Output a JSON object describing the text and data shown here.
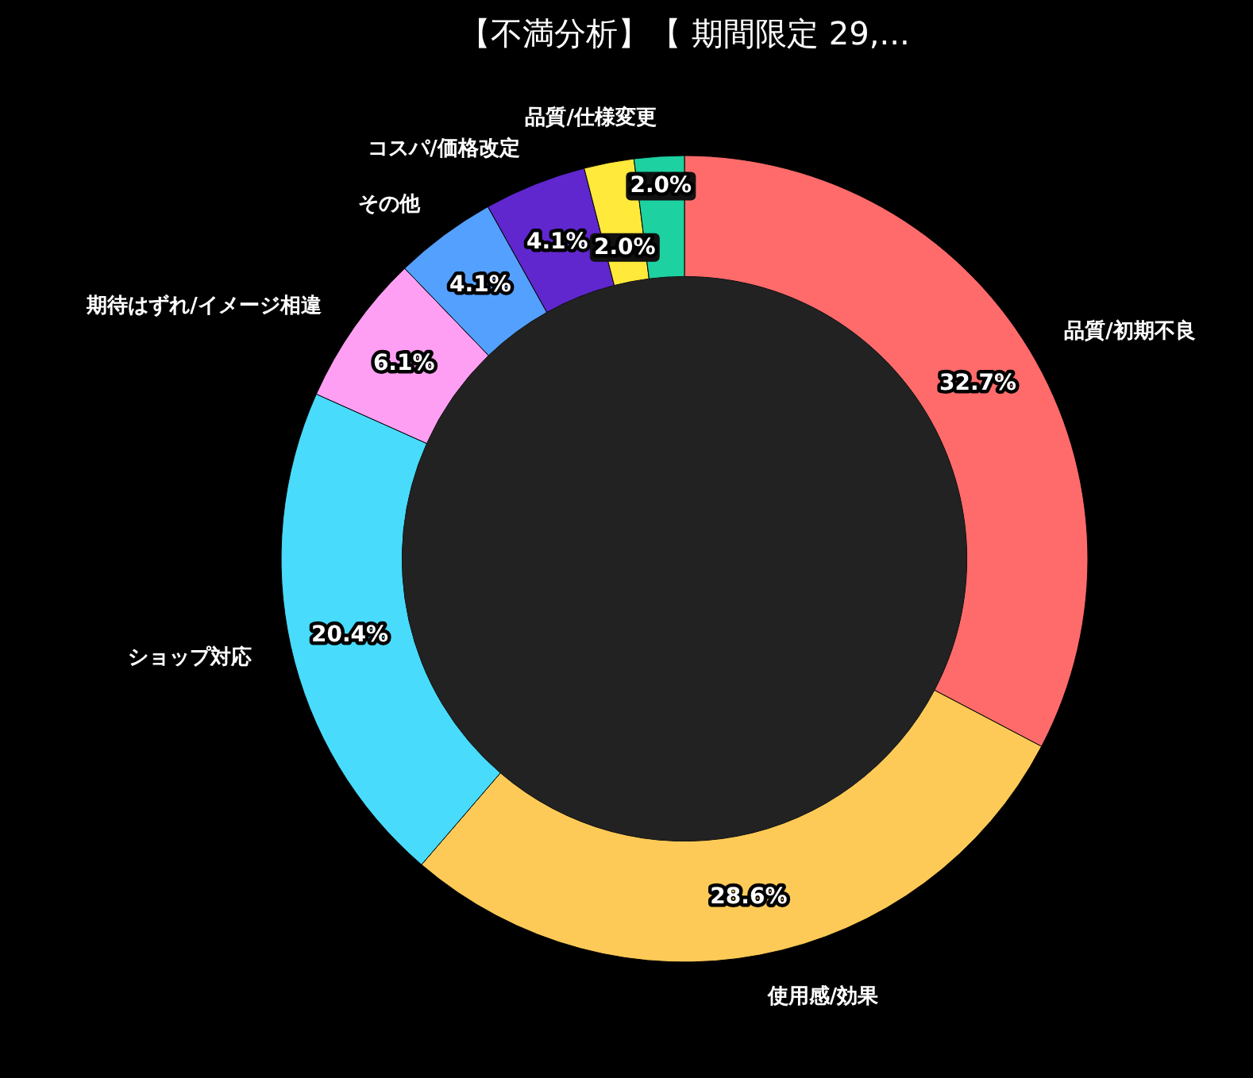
{
  "chart_data": {
    "type": "donut",
    "title": "【不満分析】【 期間限定 29,...",
    "categories": [
      "品質/初期不良",
      "使用感/効果",
      "ショップ対応",
      "期待はずれ/イメージ相違",
      "その他",
      "コスパ/価格改定",
      null,
      "品質/仕様変更"
    ],
    "values": [
      32.7,
      28.6,
      20.4,
      6.1,
      4.1,
      4.1,
      2.0,
      2.0
    ],
    "value_labels": [
      "32.7%",
      "28.6%",
      "20.4%",
      "6.1%",
      "4.1%",
      "4.1%",
      "2.0%",
      "2.0%"
    ],
    "colors": [
      "#ff6b6b",
      "#feca57",
      "#48dbfb",
      "#ff9ff3",
      "#54a0ff",
      "#5f27cd",
      "#ffe93b",
      "#1dd1a1"
    ]
  }
}
